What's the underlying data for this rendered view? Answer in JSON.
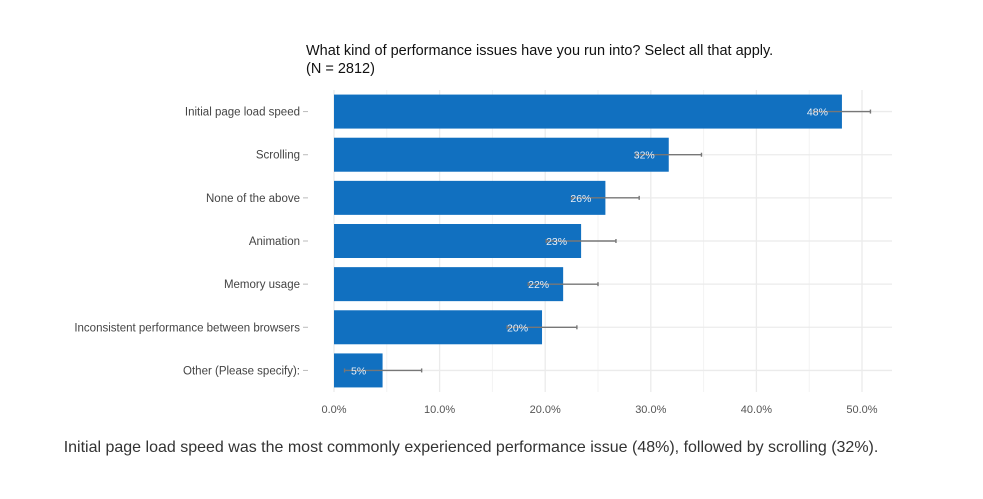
{
  "chart_data": {
    "type": "bar",
    "orientation": "horizontal",
    "title": "What kind of performance issues have you run into? Select all that apply.",
    "subtitle": "(N = 2812)",
    "categories": [
      "Initial page load speed",
      "Scrolling",
      "None of the above",
      "Animation",
      "Memory usage",
      "Inconsistent performance between browsers",
      "Other (Please specify):"
    ],
    "values": [
      48.1,
      31.7,
      25.7,
      23.4,
      21.7,
      19.7,
      4.6
    ],
    "data_labels": [
      "48%",
      "32%",
      "26%",
      "23%",
      "22%",
      "20%",
      "5%"
    ],
    "error_upper": [
      50.8,
      34.8,
      28.9,
      26.7,
      25.0,
      23.0,
      8.3
    ],
    "error_lower": [
      45.4,
      28.6,
      22.5,
      20.1,
      18.4,
      16.4,
      1.0
    ],
    "xlim": [
      0,
      50
    ],
    "x_ticks": [
      "0.0%",
      "10.0%",
      "20.0%",
      "30.0%",
      "40.0%",
      "50.0%"
    ],
    "x_tick_values": [
      0,
      10,
      20,
      30,
      40,
      50
    ],
    "grid": true,
    "bar_color": "#1170c0",
    "error_bar_color": "#777777"
  },
  "caption": "Initial page load speed was the most commonly experienced performance issue (48%), followed by scrolling (32%)."
}
